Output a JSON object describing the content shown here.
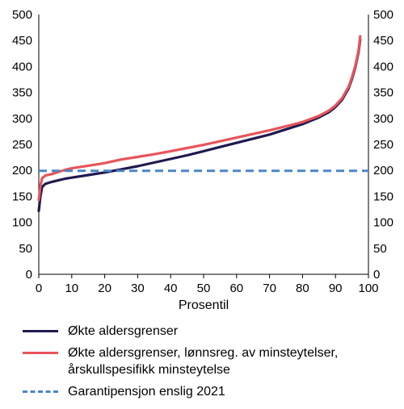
{
  "chart_data": {
    "type": "line",
    "xlabel": "Prosentil",
    "ylabel": "",
    "xlim": [
      0,
      100
    ],
    "ylim": [
      0,
      500
    ],
    "x_ticks": [
      0,
      10,
      20,
      30,
      40,
      50,
      60,
      70,
      80,
      90,
      100
    ],
    "y_ticks": [
      0,
      50,
      100,
      150,
      200,
      250,
      300,
      350,
      400,
      450,
      500
    ],
    "grid": false,
    "legend_position": "bottom",
    "series": [
      {
        "name": "Økte aldersgrenser",
        "color": "#1f1a4f",
        "x": [
          0,
          0.5,
          1,
          2,
          4,
          6,
          8,
          10,
          15,
          20,
          25,
          30,
          35,
          40,
          45,
          50,
          55,
          60,
          65,
          70,
          75,
          80,
          85,
          88,
          90,
          92,
          94,
          95,
          96,
          97,
          97.5
        ],
        "y": [
          122,
          150,
          168,
          174,
          178,
          181,
          184,
          186,
          191,
          196,
          202,
          208,
          215,
          222,
          229,
          237,
          245,
          253,
          261,
          269,
          279,
          289,
          302,
          312,
          322,
          336,
          358,
          376,
          398,
          428,
          452
        ]
      },
      {
        "name": "Økte aldersgrenser, lønnsreg. av minsteytelser, årskullspesifikk minsteytelse",
        "label_lines": [
          "Økte aldersgrenser, lønnsreg. av minsteytelser,",
          "årskullspesifikk minsteytelse"
        ],
        "color": "#e8545a",
        "x": [
          0,
          0.5,
          1,
          2,
          4,
          6,
          8,
          10,
          15,
          20,
          25,
          30,
          35,
          40,
          45,
          50,
          55,
          60,
          65,
          70,
          75,
          80,
          85,
          88,
          90,
          92,
          94,
          95,
          96,
          97,
          97.5
        ],
        "y": [
          143,
          170,
          185,
          190,
          193,
          197,
          201,
          204,
          209,
          214,
          221,
          226,
          231,
          237,
          243,
          249,
          256,
          263,
          270,
          277,
          285,
          293,
          305,
          315,
          325,
          339,
          361,
          379,
          401,
          431,
          458
        ]
      },
      {
        "name": "Garantipensjon enslig 2021",
        "color": "#4a86c8",
        "dashed": true,
        "x": [
          0,
          100
        ],
        "y": [
          199,
          199
        ]
      }
    ]
  }
}
